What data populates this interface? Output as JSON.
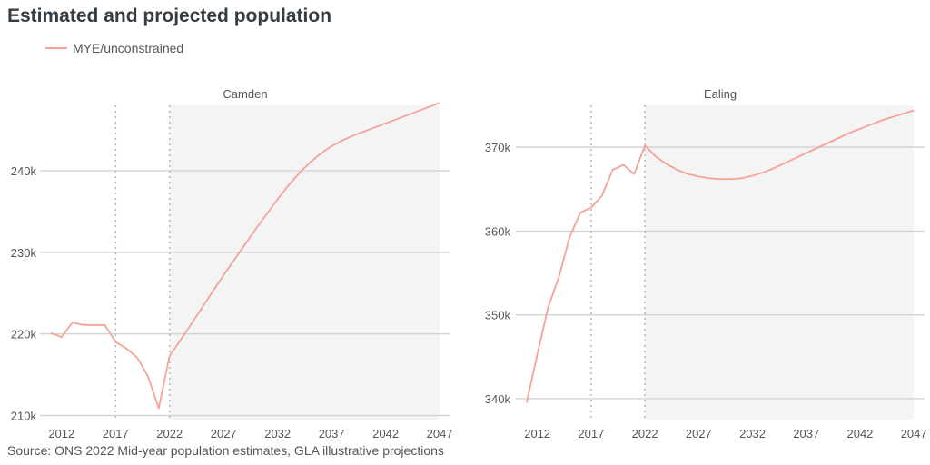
{
  "header": {
    "title": "Estimated and projected population",
    "source": "Source: ONS 2022 Mid-year population estimates, GLA illustrative projections"
  },
  "legend": {
    "label": "MYE/unconstrained",
    "color": "#f5a299"
  },
  "colors": {
    "line": "#f5a299",
    "shade": "#f4f4f4",
    "grid": "#d4d4d4",
    "vline": "#b9b9b9"
  },
  "chart_data": [
    {
      "type": "line",
      "panel_title": "Camden",
      "x_ticks": [
        2012,
        2017,
        2022,
        2027,
        2032,
        2037,
        2042,
        2047
      ],
      "y_ticks": [
        210000,
        220000,
        230000,
        240000
      ],
      "y_tick_labels": [
        "210k",
        "220k",
        "230k",
        "240k"
      ],
      "ylim": [
        209500,
        248000
      ],
      "xlim": [
        2010,
        2048
      ],
      "projection_shade_from": 2022,
      "vlines": [
        2017,
        2022
      ],
      "series": [
        {
          "name": "MYE/unconstrained",
          "x": [
            2011,
            2012,
            2013,
            2014,
            2015,
            2016,
            2017,
            2018,
            2019,
            2020,
            2021,
            2022,
            2023,
            2024,
            2025,
            2026,
            2027,
            2028,
            2029,
            2030,
            2031,
            2032,
            2033,
            2034,
            2035,
            2036,
            2037,
            2038,
            2039,
            2040,
            2041,
            2042,
            2043,
            2044,
            2045,
            2046,
            2047
          ],
          "y": [
            220100,
            219600,
            221400,
            221100,
            221100,
            221100,
            219000,
            218200,
            217100,
            214800,
            210900,
            217300,
            219200,
            221200,
            223200,
            225200,
            227200,
            229100,
            231000,
            232900,
            234700,
            236500,
            238200,
            239700,
            241000,
            242100,
            243000,
            243700,
            244300,
            244800,
            245300,
            245800,
            246300,
            246800,
            247300,
            247800,
            248300
          ]
        }
      ]
    },
    {
      "type": "line",
      "panel_title": "Ealing",
      "x_ticks": [
        2012,
        2017,
        2022,
        2027,
        2032,
        2037,
        2042,
        2047
      ],
      "y_ticks": [
        340000,
        350000,
        360000,
        370000
      ],
      "y_tick_labels": [
        "340k",
        "350k",
        "360k",
        "370k"
      ],
      "ylim": [
        337500,
        375000
      ],
      "xlim": [
        2010,
        2048
      ],
      "projection_shade_from": 2022,
      "vlines": [
        2017,
        2022
      ],
      "series": [
        {
          "name": "MYE/unconstrained",
          "x": [
            2011,
            2012,
            2013,
            2014,
            2015,
            2016,
            2017,
            2018,
            2019,
            2020,
            2021,
            2022,
            2023,
            2024,
            2025,
            2026,
            2027,
            2028,
            2029,
            2030,
            2031,
            2032,
            2033,
            2034,
            2035,
            2036,
            2037,
            2038,
            2039,
            2040,
            2041,
            2042,
            2043,
            2044,
            2045,
            2046,
            2047
          ],
          "y": [
            339500,
            345300,
            350900,
            354500,
            359300,
            362200,
            362800,
            364200,
            367300,
            367900,
            366800,
            370200,
            368900,
            368000,
            367300,
            366800,
            366500,
            366300,
            366200,
            366200,
            366300,
            366600,
            367000,
            367500,
            368100,
            368700,
            369300,
            369900,
            370500,
            371100,
            371700,
            372200,
            372700,
            373200,
            373600,
            374000,
            374400
          ]
        }
      ]
    }
  ]
}
